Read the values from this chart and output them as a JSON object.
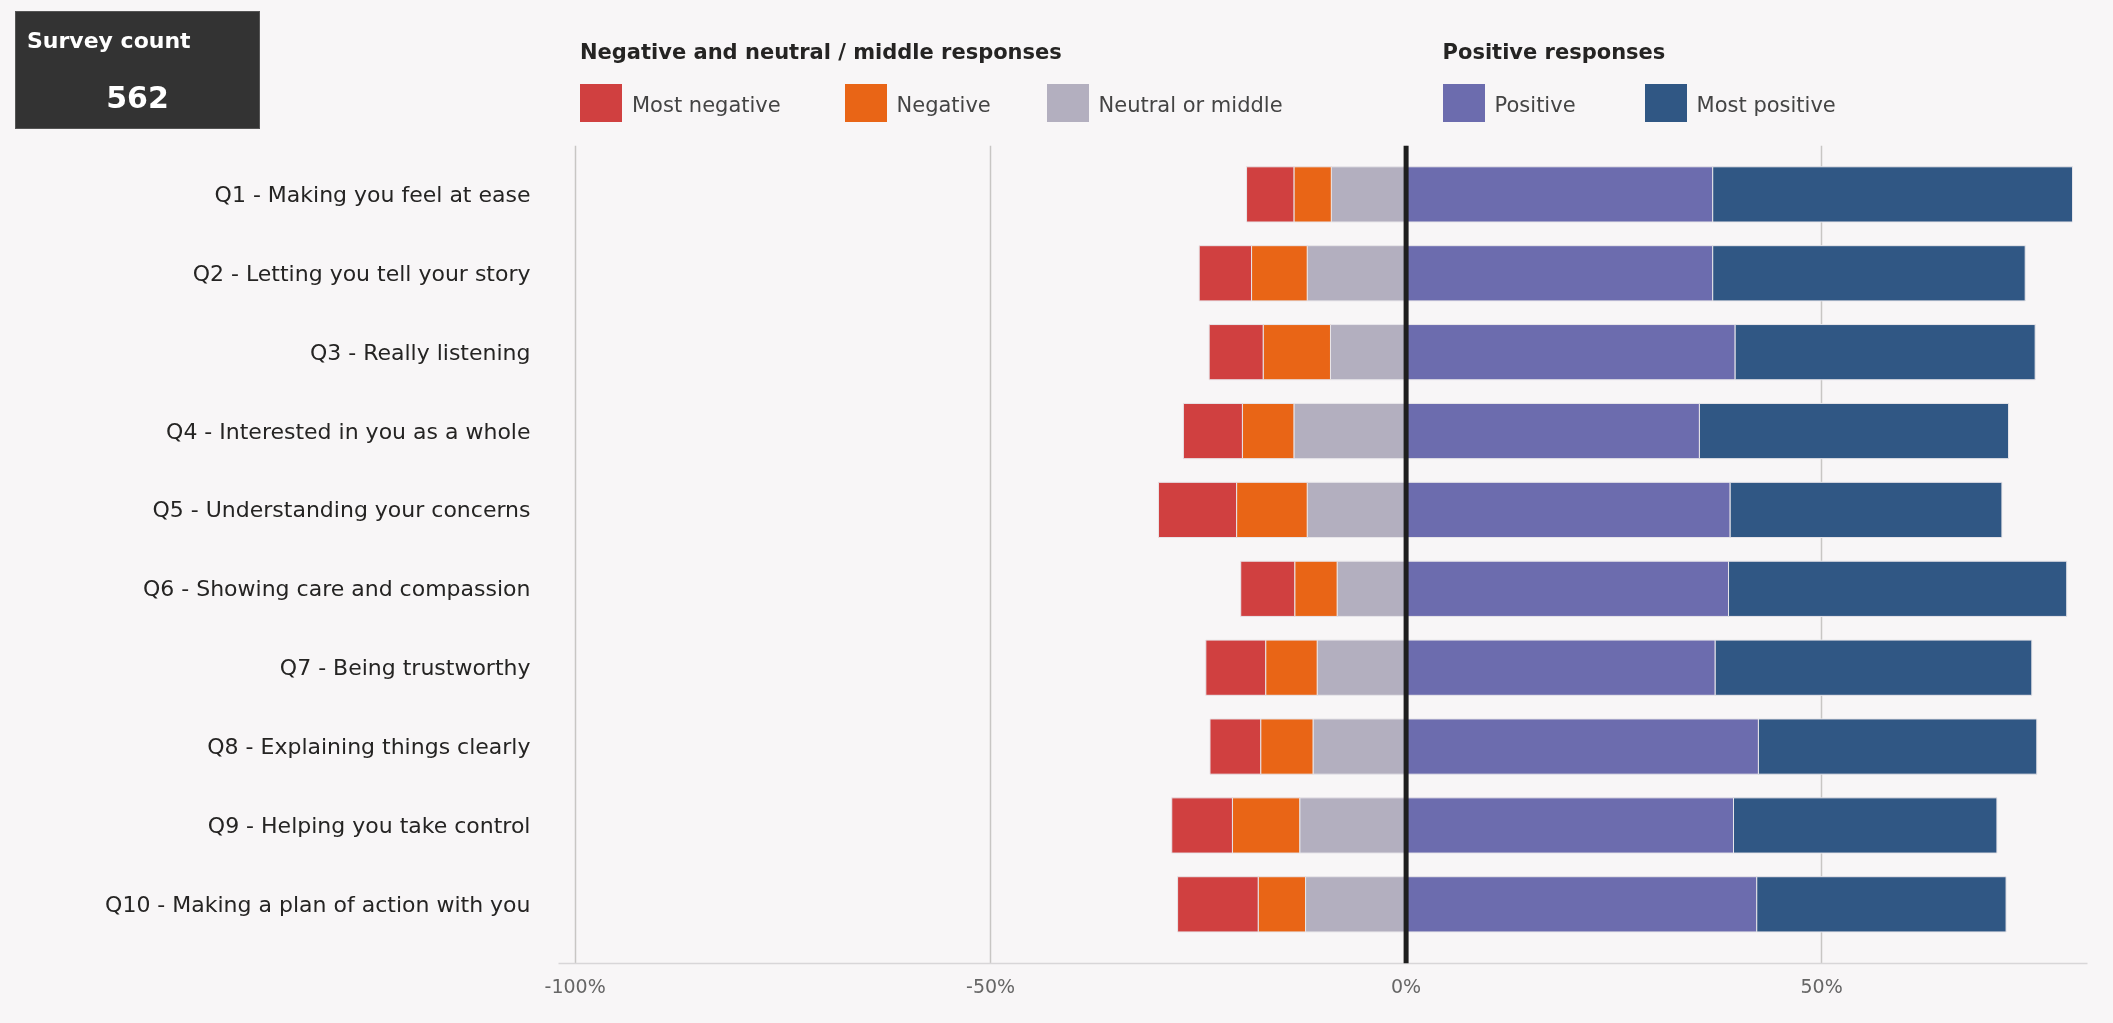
{
  "chart_data": {
    "type": "bar",
    "orientation": "horizontal",
    "stacked": true,
    "categories": [
      "Q1 - Making you feel at ease",
      "Q2 - Letting you tell your story",
      "Q3 - Really listening",
      "Q4 - Interested in you as a whole",
      "Q5 - Understanding your concerns",
      "Q6 - Showing care and compassion",
      "Q7 - Being trustworthy",
      "Q8 - Explaining things clearly",
      "Q9 - Helping you take control",
      "Q10 - Making a plan of action with you"
    ],
    "series": [
      {
        "name": "Neutral or middle",
        "color": "#b3afbf",
        "values": [
          -9.0,
          -11.9,
          -9.1,
          -13.5,
          -11.9,
          -8.3,
          -10.7,
          -11.2,
          -12.8,
          -12.1
        ]
      },
      {
        "name": "Negative",
        "color": "#e96516",
        "values": [
          -4.5,
          -6.7,
          -8.1,
          -6.2,
          -8.5,
          -5.1,
          -6.2,
          -6.3,
          -8.1,
          -5.7
        ]
      },
      {
        "name": "Most negative",
        "color": "#d04040",
        "values": [
          -5.7,
          -6.3,
          -6.5,
          -7.1,
          -9.4,
          -6.5,
          -7.2,
          -6.1,
          -7.3,
          -9.7
        ]
      },
      {
        "name": "Positive",
        "color": "#6c6cae",
        "values": [
          36.9,
          36.9,
          39.6,
          35.3,
          39.0,
          38.8,
          37.2,
          42.4,
          39.4,
          42.2
        ]
      },
      {
        "name": "Most positive",
        "color": "#305784",
        "values": [
          43.3,
          37.6,
          36.1,
          37.2,
          32.7,
          40.7,
          38.1,
          33.5,
          31.7,
          30.0
        ]
      }
    ],
    "xlim": [
      -102,
      82
    ],
    "xticks": [
      {
        "value": -100,
        "label": "-100%"
      },
      {
        "value": -50,
        "label": "-50%"
      },
      {
        "value": 0,
        "label": "0%"
      },
      {
        "value": 50,
        "label": "50%"
      }
    ],
    "grid": "x",
    "legend": "top",
    "legend_title": "Negative and neutral / middle responses",
    "ref_lines": [
      {
        "axis": "x",
        "value": 0,
        "color": "#1e1e1e"
      }
    ],
    "annotations": [
      "Survey count",
      "562",
      "Positive responses"
    ]
  }
}
